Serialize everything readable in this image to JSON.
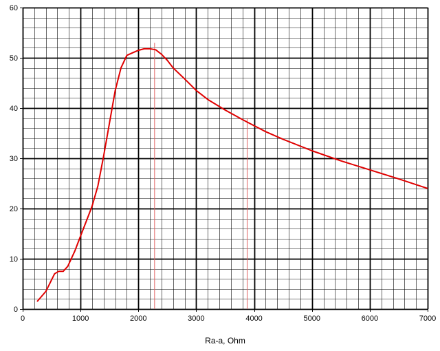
{
  "chart_data": {
    "type": "line",
    "title": "",
    "xlabel": "Ra-a, Ohm",
    "ylabel": "",
    "xlim": [
      0,
      7000
    ],
    "ylim": [
      0,
      60
    ],
    "x_ticks": [
      0,
      1000,
      2000,
      3000,
      4000,
      5000,
      6000,
      7000
    ],
    "y_ticks": [
      0,
      10,
      20,
      30,
      40,
      50,
      60
    ],
    "x_tick_labels": [
      "0",
      "1000",
      "2000",
      "3000",
      "4000",
      "5000",
      "6000",
      "7000"
    ],
    "y_tick_labels": [
      "0",
      "10",
      "20",
      "30",
      "40",
      "50",
      "60"
    ],
    "minor_x_step": 200,
    "minor_y_step": 2,
    "grid": true,
    "legend": "none",
    "series": [
      {
        "color": "#e00000",
        "x": [
          250,
          400,
          550,
          620,
          700,
          780,
          900,
          1000,
          1100,
          1200,
          1300,
          1400,
          1500,
          1600,
          1700,
          1800,
          1900,
          2000,
          2100,
          2200,
          2300,
          2400,
          2500,
          2600,
          2800,
          3000,
          3200,
          3500,
          3800,
          4000,
          4200,
          4500,
          5000,
          5500,
          6000,
          6500,
          7000
        ],
        "y": [
          1.5,
          3.5,
          7.0,
          7.5,
          7.5,
          8.5,
          11.5,
          14.5,
          17.5,
          20.5,
          24.5,
          30.5,
          37.0,
          43.5,
          48.0,
          50.5,
          51.0,
          51.5,
          51.8,
          51.8,
          51.6,
          50.7,
          49.5,
          48.0,
          45.8,
          43.5,
          41.7,
          39.6,
          37.7,
          36.5,
          35.3,
          33.8,
          31.5,
          29.5,
          27.7,
          25.9,
          24.0
        ]
      }
    ],
    "markers": [
      {
        "x": 2280,
        "y_from": 0,
        "y_to": 53,
        "color": "#e06060"
      },
      {
        "x": 3880,
        "y_from": 0,
        "y_to": 38,
        "color": "#e06060"
      }
    ]
  }
}
